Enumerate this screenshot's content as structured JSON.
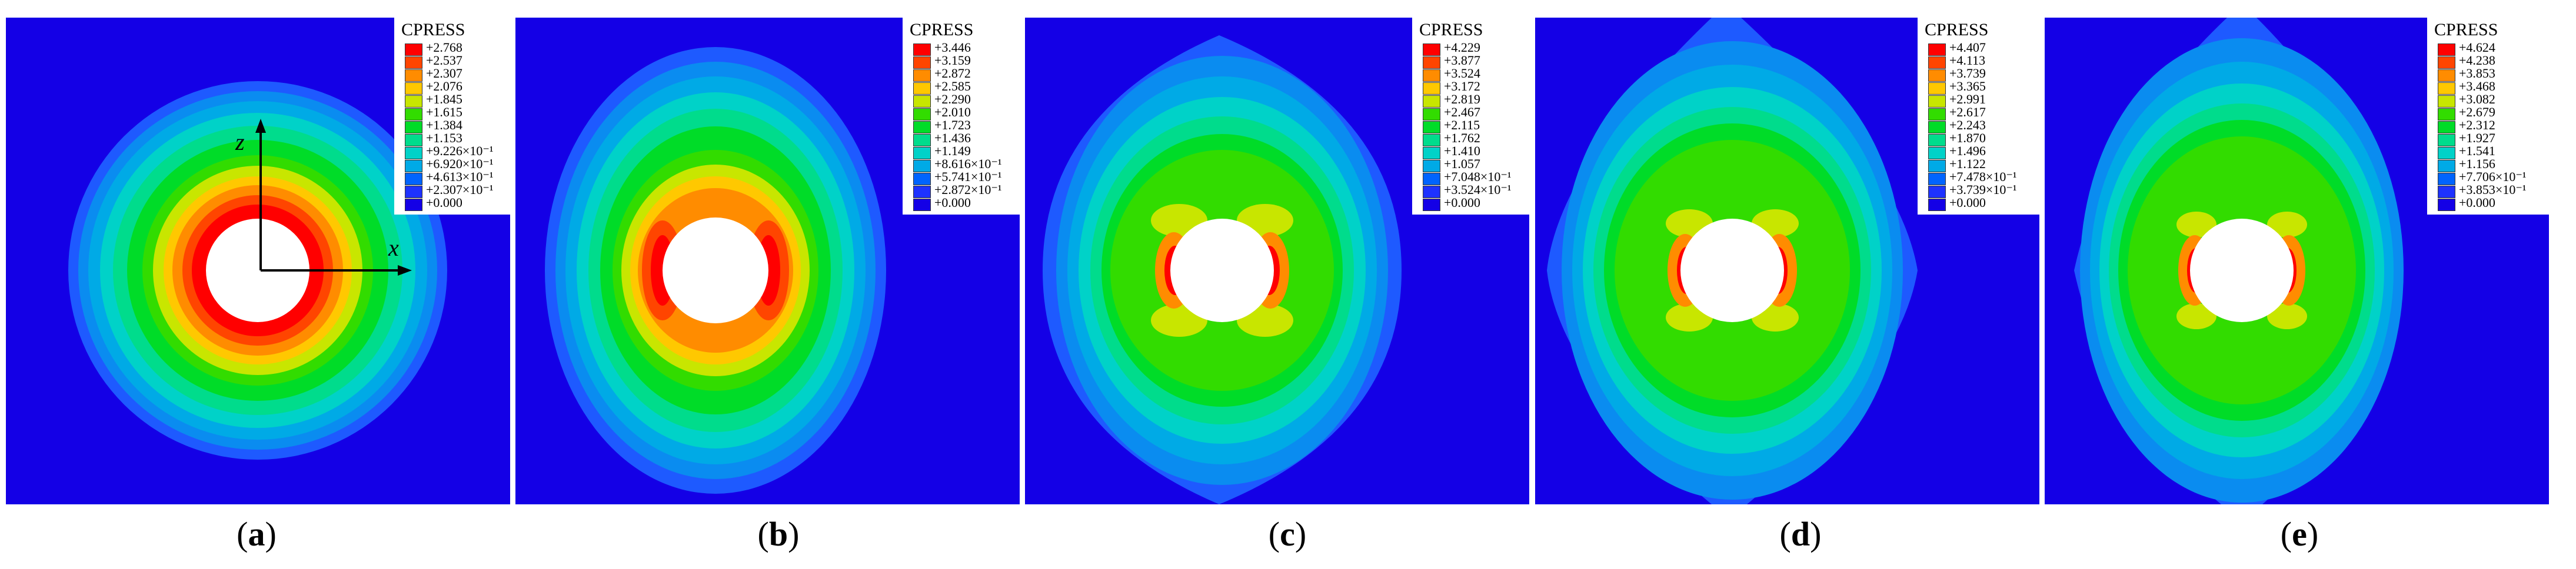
{
  "colors": [
    "#ff0000",
    "#ff4500",
    "#ff8c00",
    "#ffc800",
    "#c8e600",
    "#32dc00",
    "#00dc28",
    "#00dc8c",
    "#00d2c8",
    "#00aae6",
    "#0064ff",
    "#1e32ff",
    "#1400e6"
  ],
  "background_color": "#1400e6",
  "panels": [
    {
      "caption": "(a)",
      "caption_letter": "a",
      "legend_title": "CPRESS",
      "legend_values": [
        "+2.768",
        "+2.537",
        "+2.307",
        "+2.076",
        "+1.845",
        "+1.615",
        "+1.384",
        "+1.153",
        "+9.226×10⁻¹",
        "+6.920×10⁻¹",
        "+4.613×10⁻¹",
        "+2.307×10⁻¹",
        "+0.000"
      ],
      "shape": "circular",
      "axis_labels": {
        "z": "z",
        "x": "x"
      }
    },
    {
      "caption": "(b)",
      "caption_letter": "b",
      "legend_title": "CPRESS",
      "legend_values": [
        "+3.446",
        "+3.159",
        "+2.872",
        "+2.585",
        "+2.290",
        "+2.010",
        "+1.723",
        "+1.436",
        "+1.149",
        "+8.616×10⁻¹",
        "+5.741×10⁻¹",
        "+2.872×10⁻¹",
        "+0.000"
      ],
      "shape": "oval"
    },
    {
      "caption": "(c)",
      "caption_letter": "c",
      "legend_title": "CPRESS",
      "legend_values": [
        "+4.229",
        "+3.877",
        "+3.524",
        "+3.172",
        "+2.819",
        "+2.467",
        "+2.115",
        "+1.762",
        "+1.410",
        "+1.057",
        "+7.048×10⁻¹",
        "+3.524×10⁻¹",
        "+0.000"
      ],
      "shape": "lens"
    },
    {
      "caption": "(d)",
      "caption_letter": "d",
      "legend_title": "CPRESS",
      "legend_values": [
        "+4.407",
        "+4.113",
        "+3.739",
        "+3.365",
        "+2.991",
        "+2.617",
        "+2.243",
        "+1.870",
        "+1.496",
        "+1.122",
        "+7.478×10⁻¹",
        "+3.739×10⁻¹",
        "+0.000"
      ],
      "shape": "lens"
    },
    {
      "caption": "(e)",
      "caption_letter": "e",
      "legend_title": "CPRESS",
      "legend_values": [
        "+4.624",
        "+4.238",
        "+3.853",
        "+3.468",
        "+3.082",
        "+2.679",
        "+2.312",
        "+1.927",
        "+1.541",
        "+1.156",
        "+7.706×10⁻¹",
        "+3.853×10⁻¹",
        "+0.000"
      ],
      "shape": "lens"
    }
  ]
}
